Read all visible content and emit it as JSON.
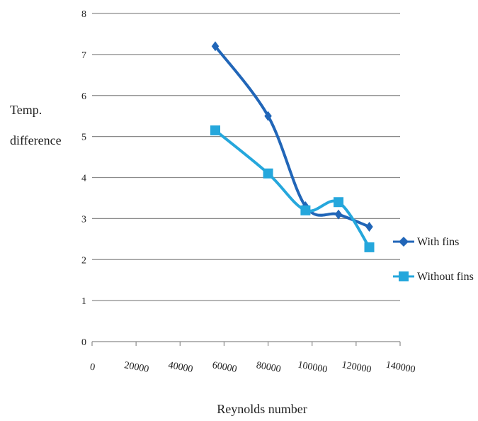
{
  "chart_data": {
    "type": "line",
    "xlabel": "Reynolds number",
    "ylabel_lines": [
      "Temp.",
      "difference"
    ],
    "xlim": [
      0,
      140000
    ],
    "ylim": [
      0,
      8
    ],
    "xticks": [
      "0",
      "20000",
      "40000",
      "60000",
      "80000",
      "100000",
      "120000",
      "140000"
    ],
    "yticks": [
      "0",
      "1",
      "2",
      "3",
      "4",
      "5",
      "6",
      "7",
      "8"
    ],
    "grid": "horizontal",
    "legend_position": "right",
    "series": [
      {
        "name": "With fins",
        "color": "#2166b8",
        "marker": "diamond",
        "x": [
          56000,
          80000,
          97000,
          112000,
          126000
        ],
        "y": [
          7.2,
          5.5,
          3.3,
          3.1,
          2.8
        ]
      },
      {
        "name": "Without fins",
        "color": "#25a7dc",
        "marker": "square",
        "x": [
          56000,
          80000,
          97000,
          112000,
          126000
        ],
        "y": [
          5.15,
          4.1,
          3.2,
          3.4,
          2.3
        ]
      }
    ]
  }
}
